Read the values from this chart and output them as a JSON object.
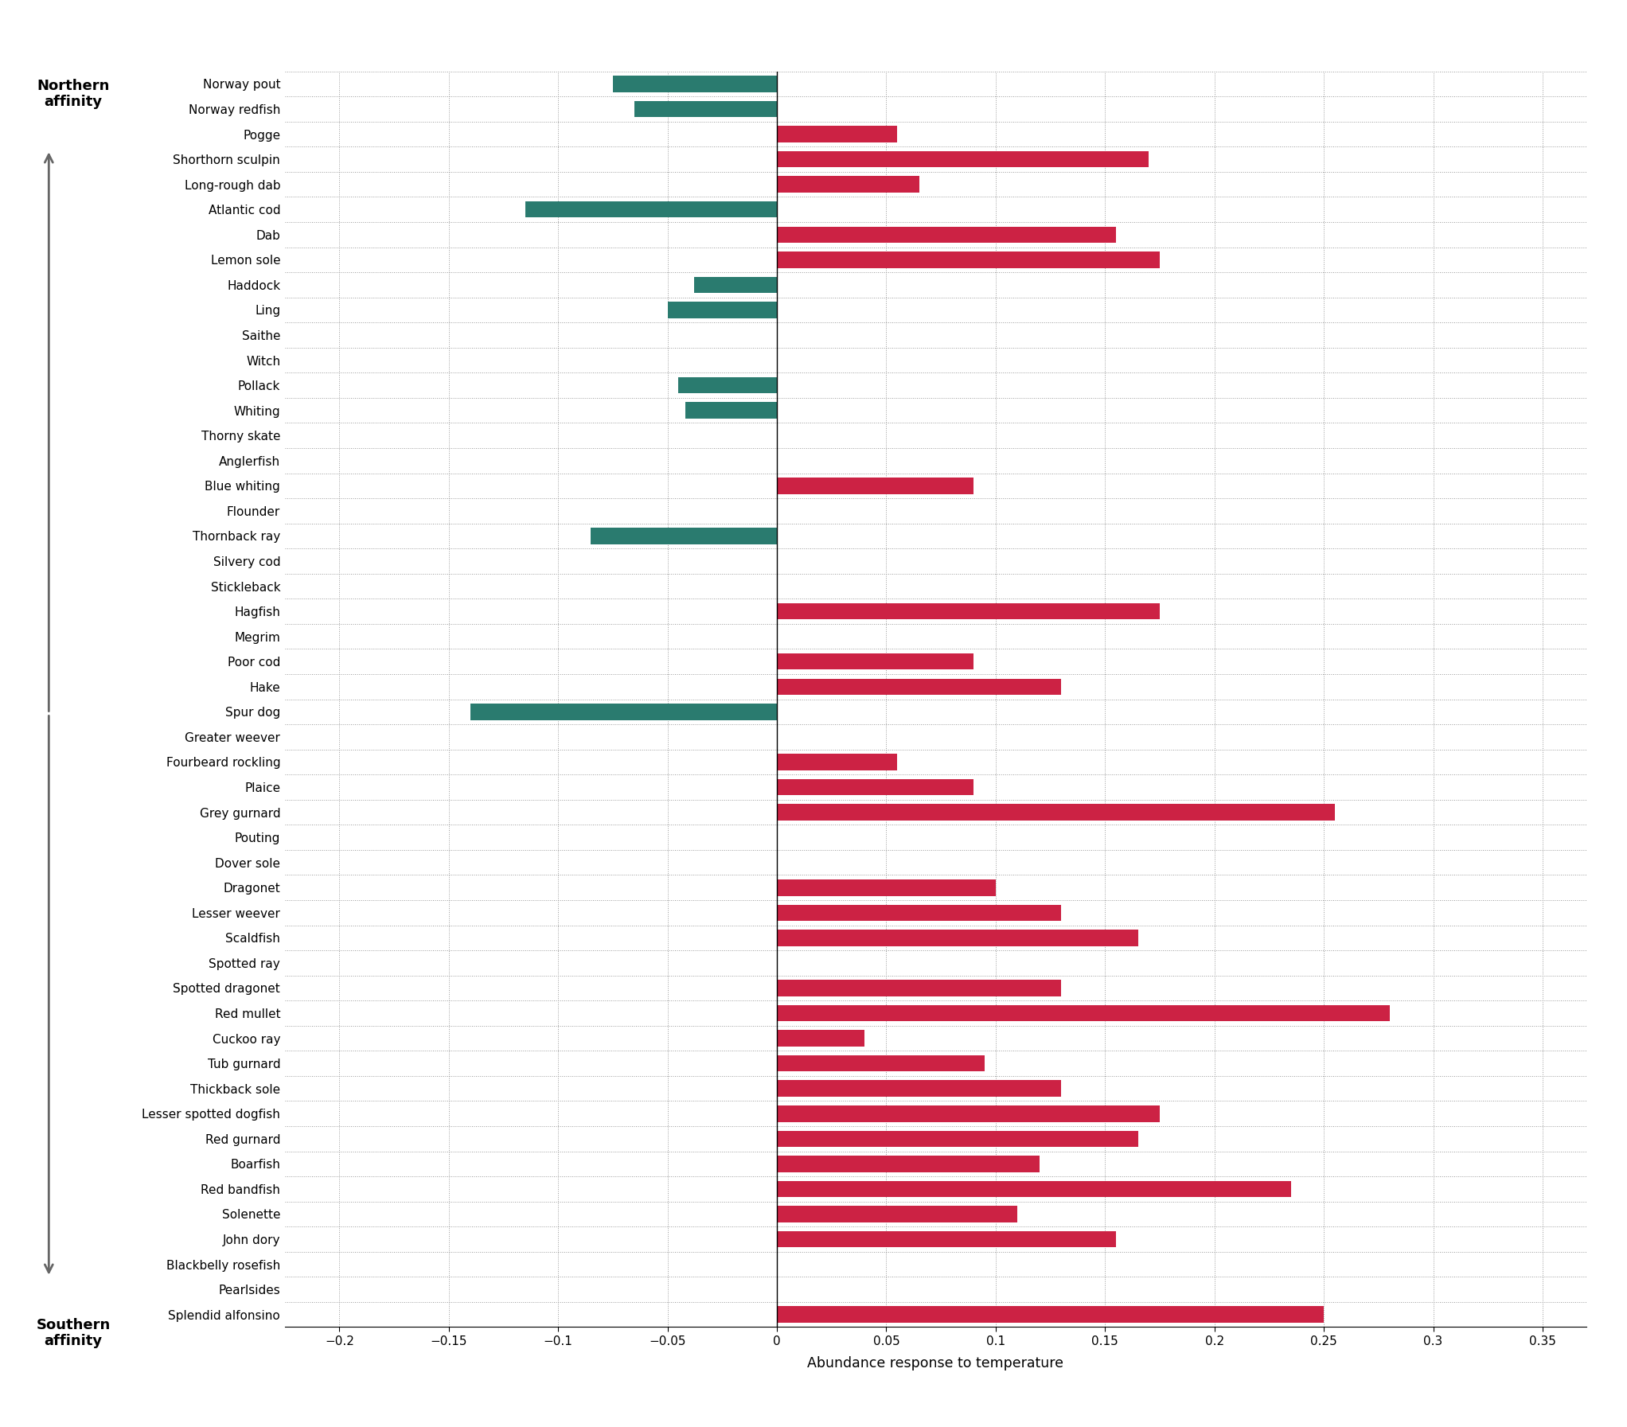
{
  "species": [
    "Norway pout",
    "Norway redfish",
    "Pogge",
    "Shorthorn sculpin",
    "Long-rough dab",
    "Atlantic cod",
    "Dab",
    "Lemon sole",
    "Haddock",
    "Ling",
    "Saithe",
    "Witch",
    "Pollack",
    "Whiting",
    "Thorny skate",
    "Anglerfish",
    "Blue whiting",
    "Flounder",
    "Thornback ray",
    "Silvery cod",
    "Stickleback",
    "Hagfish",
    "Megrim",
    "Poor cod",
    "Hake",
    "Spur dog",
    "Greater weever",
    "Fourbeard rockling",
    "Plaice",
    "Grey gurnard",
    "Pouting",
    "Dover sole",
    "Dragonet",
    "Lesser weever",
    "Scaldfish",
    "Spotted ray",
    "Spotted dragonet",
    "Red mullet",
    "Cuckoo ray",
    "Tub gurnard",
    "Thickback sole",
    "Lesser spotted dogfish",
    "Red gurnard",
    "Boarfish",
    "Red bandfish",
    "Solenette",
    "John dory",
    "Blackbelly rosefish",
    "Pearlsides",
    "Splendid alfonsino"
  ],
  "values": [
    -0.075,
    -0.065,
    0.055,
    0.17,
    0.065,
    -0.115,
    0.155,
    0.175,
    -0.038,
    -0.05,
    0.0,
    0.0,
    -0.045,
    -0.042,
    0.0,
    0.0,
    0.09,
    0.0,
    -0.085,
    0.0,
    0.0,
    0.175,
    0.0,
    0.09,
    0.13,
    -0.14,
    0.0,
    0.055,
    0.09,
    0.255,
    0.0,
    0.0,
    0.1,
    0.13,
    0.165,
    0.0,
    0.13,
    0.28,
    0.04,
    0.095,
    0.13,
    0.175,
    0.165,
    0.12,
    0.235,
    0.11,
    0.155,
    0.0,
    0.0,
    0.25
  ],
  "teal_color": "#2a7b6f",
  "red_color": "#cc2244",
  "background_color": "#ffffff",
  "xlabel": "Abundance response to temperature",
  "xlim": [
    -0.225,
    0.37
  ],
  "xticks": [
    -0.2,
    -0.15,
    -0.1,
    -0.05,
    0.0,
    0.05,
    0.1,
    0.15,
    0.2,
    0.25,
    0.3,
    0.35
  ],
  "xtick_labels": [
    "−0.2",
    "−0.15",
    "−0.1",
    "−0.05",
    "0",
    "0.05",
    "0.1",
    "0.15",
    "0.2",
    "0.25",
    "0.3",
    "0.35"
  ],
  "arrow_color": "#666666",
  "northern_label": "Northern\naffinity",
  "southern_label": "Southern\naffinity",
  "bar_height": 0.65
}
